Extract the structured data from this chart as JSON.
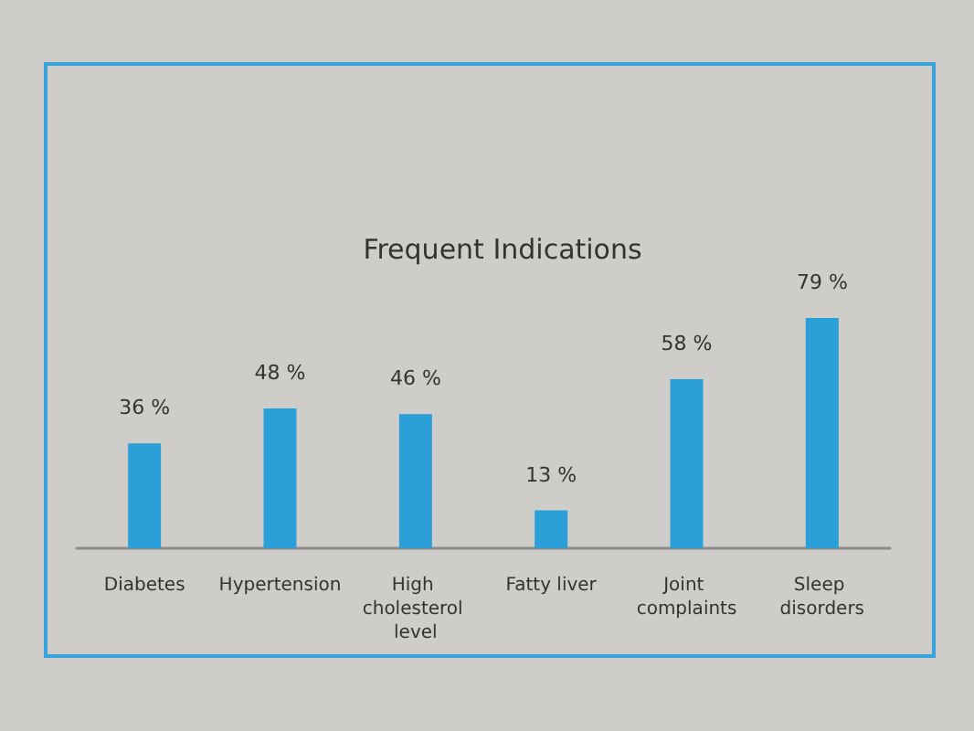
{
  "chart_data": {
    "type": "bar",
    "title": "Frequent Indications",
    "categories": [
      "Diabetes",
      "Hypertension",
      "High cholesterol level",
      "Fatty liver",
      "Joint complaints",
      "Sleep disorders"
    ],
    "values": [
      36,
      48,
      46,
      13,
      58,
      79
    ],
    "color": "#2b9fd8",
    "value_labels": [
      "36 %",
      "48 %",
      "46 %",
      "13 %",
      "58 %",
      "79 %"
    ]
  }
}
